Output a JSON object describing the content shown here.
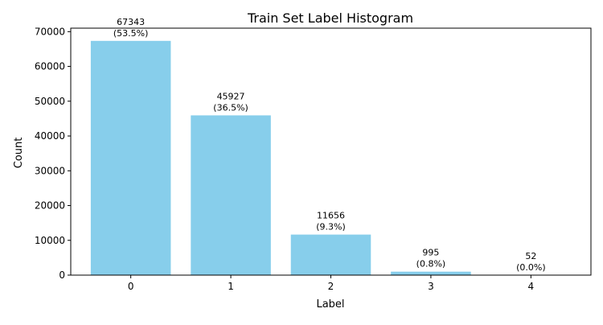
{
  "chart_data": {
    "type": "bar",
    "title": "Train Set Label Histogram",
    "xlabel": "Label",
    "ylabel": "Count",
    "categories": [
      "0",
      "1",
      "2",
      "3",
      "4"
    ],
    "values": [
      67343,
      45927,
      11656,
      995,
      52
    ],
    "data_labels": [
      [
        "67343",
        "(53.5%)"
      ],
      [
        "45927",
        "(36.5%)"
      ],
      [
        "11656",
        "(9.3%)"
      ],
      [
        "995",
        "(0.8%)"
      ],
      [
        "52",
        "(0.0%)"
      ]
    ],
    "y_ticks": [
      0,
      10000,
      20000,
      30000,
      40000,
      50000,
      60000,
      70000
    ],
    "ylim": [
      0,
      71000
    ],
    "bar_color": "#87CEEB",
    "grid": false,
    "legend": null
  }
}
